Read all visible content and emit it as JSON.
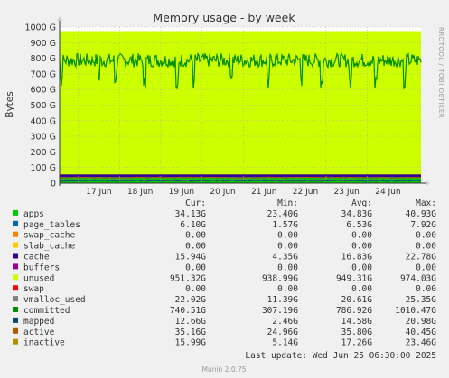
{
  "chart_data": {
    "type": "area",
    "title": "Memory usage - by week",
    "ylabel": "Bytes",
    "ylim": [
      0,
      1000
    ],
    "y_unit": "G",
    "y_ticks": [
      "0",
      "100 G",
      "200 G",
      "300 G",
      "400 G",
      "500 G",
      "600 G",
      "700 G",
      "800 G",
      "900 G",
      "1000 G"
    ],
    "y_tick_values": [
      0,
      100,
      200,
      300,
      400,
      500,
      600,
      700,
      800,
      900,
      1000
    ],
    "x_ticks": [
      "17 Jun",
      "18 Jun",
      "19 Jun",
      "20 Jun",
      "21 Jun",
      "22 Jun",
      "23 Jun",
      "24 Jun"
    ],
    "x_range_days": [
      16.55,
      25.3
    ],
    "side_label": "RRDTOOL / TOBI OETIKER",
    "series_summary": {
      "stack_total_height": 974,
      "committed_line_mean": 787,
      "committed_line_min": 307,
      "committed_line_max": 1010
    },
    "legend_header": {
      "cur": "Cur:",
      "min": "Min:",
      "avg": "Avg:",
      "max": "Max:"
    },
    "legend": [
      {
        "name": "apps",
        "color": "#00cc00",
        "cur": "34.13G",
        "min": "23.40G",
        "avg": "34.83G",
        "max": "40.93G"
      },
      {
        "name": "page_tables",
        "color": "#0066b3",
        "cur": "6.10G",
        "min": "1.57G",
        "avg": "6.53G",
        "max": "7.92G"
      },
      {
        "name": "swap_cache",
        "color": "#ff8000",
        "cur": "0.00",
        "min": "0.00",
        "avg": "0.00",
        "max": "0.00"
      },
      {
        "name": "slab_cache",
        "color": "#ffcc00",
        "cur": "0.00",
        "min": "0.00",
        "avg": "0.00",
        "max": "0.00"
      },
      {
        "name": "cache",
        "color": "#330099",
        "cur": "15.94G",
        "min": "4.35G",
        "avg": "16.83G",
        "max": "22.78G"
      },
      {
        "name": "buffers",
        "color": "#990099",
        "cur": "0.00",
        "min": "0.00",
        "avg": "0.00",
        "max": "0.00"
      },
      {
        "name": "unused",
        "color": "#ccff00",
        "cur": "951.32G",
        "min": "938.99G",
        "avg": "949.31G",
        "max": "974.03G"
      },
      {
        "name": "swap",
        "color": "#ff0000",
        "cur": "0.00",
        "min": "0.00",
        "avg": "0.00",
        "max": "0.00"
      },
      {
        "name": "vmalloc_used",
        "color": "#808080",
        "cur": "22.02G",
        "min": "11.39G",
        "avg": "20.61G",
        "max": "25.35G"
      },
      {
        "name": "committed",
        "color": "#008f00",
        "cur": "740.51G",
        "min": "307.19G",
        "avg": "786.92G",
        "max": "1010.47G"
      },
      {
        "name": "mapped",
        "color": "#00487d",
        "cur": "12.66G",
        "min": "2.46G",
        "avg": "14.58G",
        "max": "20.98G"
      },
      {
        "name": "active",
        "color": "#b35a00",
        "cur": "35.16G",
        "min": "24.96G",
        "avg": "35.80G",
        "max": "40.45G"
      },
      {
        "name": "inactive",
        "color": "#b38f00",
        "cur": "15.99G",
        "min": "5.14G",
        "avg": "17.26G",
        "max": "23.46G"
      }
    ],
    "last_update": "Last update: Wed Jun 25 06:30:00 2025",
    "footer": "Munin 2.0.75",
    "grid": true
  }
}
